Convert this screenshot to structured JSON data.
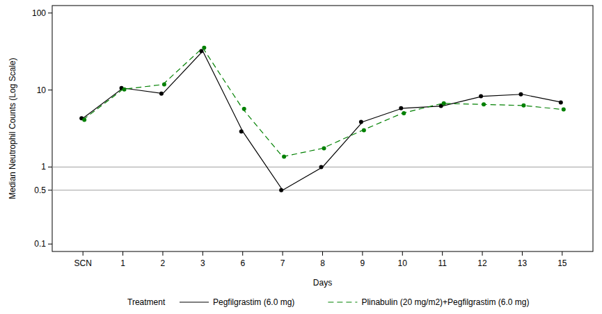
{
  "chart_data": {
    "type": "line",
    "x_label": "Days",
    "y_label": "Median Neutrophil Counts (Log Scale)",
    "categories": [
      "SCN",
      "1",
      "2",
      "3",
      "6",
      "7",
      "8",
      "9",
      "10",
      "11",
      "12",
      "13",
      "15"
    ],
    "series": [
      {
        "name": "Pegfilgrastim (6.0 mg)",
        "color": "#000000",
        "line_style": "solid",
        "marker": "circle",
        "values": [
          4.3,
          10.6,
          9.0,
          32,
          2.9,
          0.5,
          1.0,
          3.85,
          5.8,
          6.2,
          8.3,
          8.8,
          6.9
        ]
      },
      {
        "name": "Plinabulin (20 mg/m2)+Pegfilgrastim (6.0 mg)",
        "color": "#008000",
        "line_style": "dashed",
        "marker": "circle",
        "values": [
          4.1,
          10.2,
          11.8,
          35.4,
          5.7,
          1.36,
          1.75,
          3.0,
          5.0,
          6.7,
          6.5,
          6.3,
          5.6
        ]
      }
    ],
    "ylim": [
      0.08,
      125
    ],
    "yticks": [
      0.1,
      0.5,
      1,
      10,
      100
    ],
    "log": "y",
    "grid": false,
    "reference_lines": [
      1,
      0.5
    ],
    "legend": "bottom",
    "legend_title": "Treatment"
  }
}
